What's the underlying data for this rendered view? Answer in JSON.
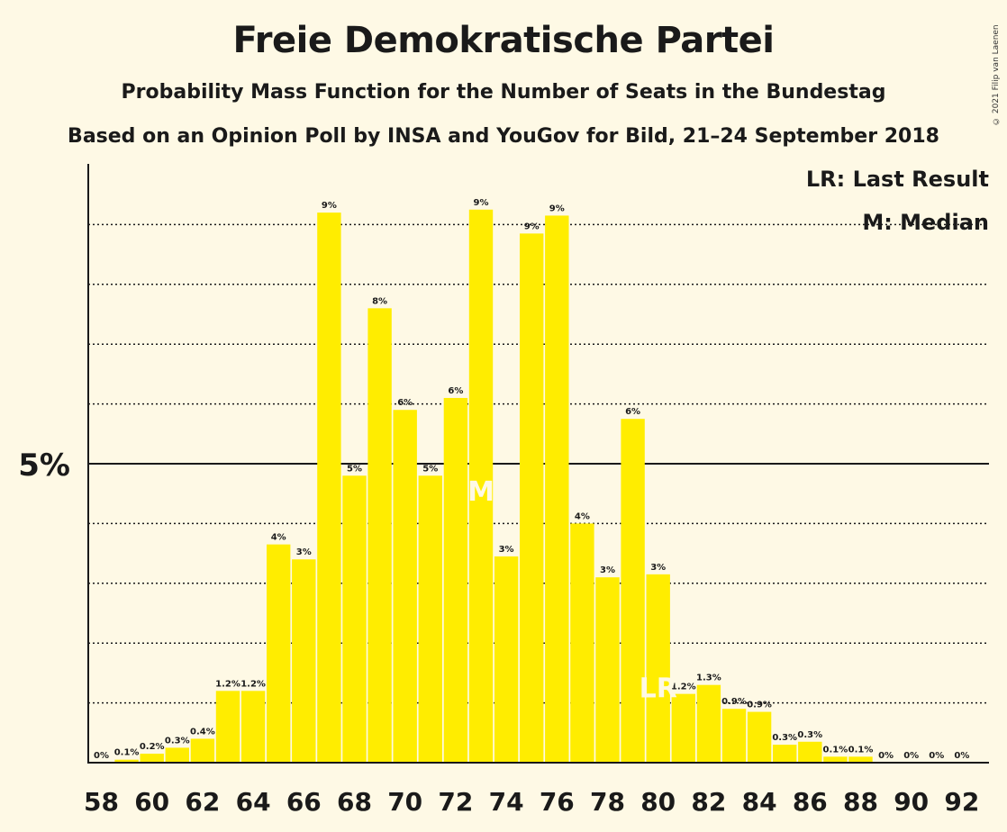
{
  "title": "Freie Demokratische Partei",
  "subtitle1": "Probability Mass Function for the Number of Seats in the Bundestag",
  "subtitle2": "Based on an Opinion Poll by INSA and YouGov for Bild, 21–24 September 2018",
  "copyright": "© 2021 Filip van Laenen",
  "legend": {
    "last_result": "LR: Last Result",
    "median": "M: Median"
  },
  "colors": {
    "bar": "#ffed00",
    "background": "#fef9e5",
    "text": "#1a1a1a"
  },
  "chart_data": {
    "type": "bar",
    "x": [
      58,
      59,
      60,
      61,
      62,
      63,
      64,
      65,
      66,
      67,
      68,
      69,
      70,
      71,
      72,
      73,
      74,
      75,
      76,
      77,
      78,
      79,
      80,
      81,
      82,
      83,
      84,
      85,
      86,
      87,
      88,
      89,
      90,
      91,
      92
    ],
    "values": [
      0.0,
      0.05,
      0.15,
      0.25,
      0.4,
      1.2,
      1.2,
      3.65,
      3.4,
      9.2,
      4.8,
      7.6,
      5.9,
      4.8,
      6.1,
      9.25,
      3.45,
      8.85,
      9.15,
      4.0,
      3.1,
      5.75,
      3.15,
      1.15,
      1.3,
      0.9,
      0.85,
      0.3,
      0.35,
      0.1,
      0.1,
      0.0,
      0.0,
      0.0,
      0.0
    ],
    "labels": [
      "0%",
      "0.1%",
      "0.2%",
      "0.3%",
      "0.4%",
      "1.2%",
      "1.2%",
      "4%",
      "3%",
      "9%",
      "5%",
      "8%",
      "6%",
      "5%",
      "6%",
      "9%",
      "3%",
      "9%",
      "9%",
      "4%",
      "3%",
      "6%",
      "3%",
      "1.2%",
      "1.3%",
      "0.9%",
      "0.9%",
      "0.3%",
      "0.3%",
      "0.1%",
      "0.1%",
      "0%",
      "0%",
      "0%",
      "0%"
    ],
    "x_tick_labels": [
      "58",
      "60",
      "62",
      "64",
      "66",
      "68",
      "70",
      "72",
      "74",
      "76",
      "78",
      "80",
      "82",
      "84",
      "86",
      "88",
      "90",
      "92"
    ],
    "y_tick_label": "5%",
    "y_tick_value": 5,
    "ylim": [
      0,
      10
    ],
    "grid": "dotted horizontal every 1%",
    "median_seat": 73,
    "median_marker": "M",
    "last_result_seat": 80,
    "last_result_marker": "LR"
  }
}
